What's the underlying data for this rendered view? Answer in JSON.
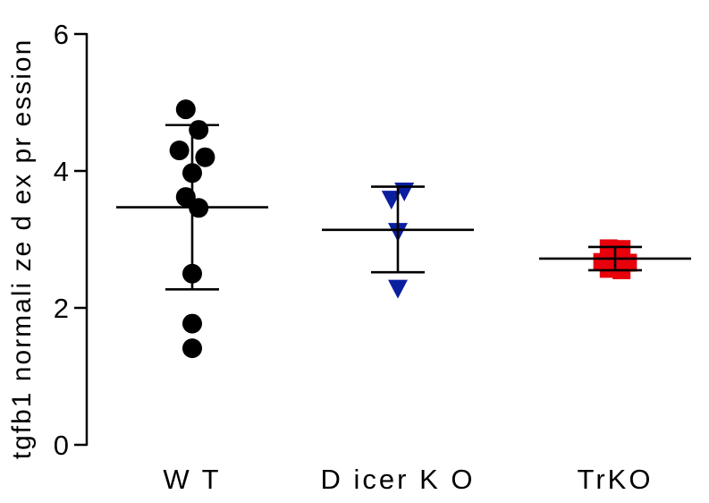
{
  "chart_data": {
    "type": "scatter",
    "ylabel": "tgfb1 normalized expression",
    "ylabel_display": "tgfb1 normali ze d ex pr ession",
    "ylim": [
      0,
      6
    ],
    "yticks": [
      0,
      2,
      4,
      6
    ],
    "ytick_labels": [
      "0",
      "2",
      "4",
      "6"
    ],
    "categories": [
      "WT",
      "Dicer KO",
      "TrKO"
    ],
    "category_labels_display": [
      "W T",
      "D icer K O",
      "TrKO"
    ],
    "grid": false,
    "series": [
      {
        "category": "WT",
        "marker": "circle",
        "color": "#000000",
        "mean": 3.47,
        "sd_upper": 4.67,
        "sd_lower": 2.27,
        "points": [
          {
            "y": 4.9,
            "jitter": -0.18
          },
          {
            "y": 4.6,
            "jitter": 0.18
          },
          {
            "y": 4.3,
            "jitter": -0.36
          },
          {
            "y": 4.2,
            "jitter": 0.36
          },
          {
            "y": 3.97,
            "jitter": 0.0
          },
          {
            "y": 3.62,
            "jitter": -0.18
          },
          {
            "y": 3.46,
            "jitter": 0.18
          },
          {
            "y": 2.5,
            "jitter": 0.0
          },
          {
            "y": 1.77,
            "jitter": 0.0
          },
          {
            "y": 1.41,
            "jitter": 0.0
          }
        ]
      },
      {
        "category": "Dicer KO",
        "marker": "triangle-down",
        "color": "#0a1ea0",
        "mean": 3.14,
        "sd_upper": 3.77,
        "sd_lower": 2.52,
        "points": [
          {
            "y": 3.7,
            "jitter": 0.18
          },
          {
            "y": 3.58,
            "jitter": -0.18
          },
          {
            "y": 3.11,
            "jitter": 0.0
          },
          {
            "y": 2.28,
            "jitter": 0.0
          }
        ]
      },
      {
        "category": "TrKO",
        "marker": "square",
        "color": "#e8000b",
        "mean": 2.72,
        "sd_upper": 2.89,
        "sd_lower": 2.55,
        "points": [
          {
            "y": 2.87,
            "jitter": -0.18
          },
          {
            "y": 2.86,
            "jitter": 0.18
          },
          {
            "y": 2.67,
            "jitter": -0.36
          },
          {
            "y": 2.66,
            "jitter": 0.36
          },
          {
            "y": 2.63,
            "jitter": 0.0
          },
          {
            "y": 2.57,
            "jitter": -0.18
          },
          {
            "y": 2.55,
            "jitter": 0.18
          }
        ]
      }
    ]
  }
}
